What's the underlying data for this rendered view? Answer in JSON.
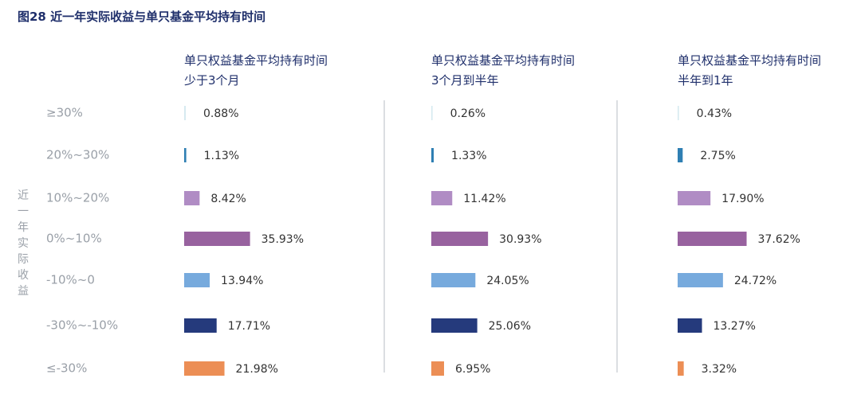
{
  "figure_title": "图28  近一年实际收益与单只基金平均持有时间",
  "chart_data": {
    "type": "bar",
    "orientation": "horizontal",
    "ylabel": "近一年实际收益",
    "categories": [
      "≥30%",
      "20%~30%",
      "10%~20%",
      "0%~10%",
      "-10%~0",
      "-30%~-10%",
      "≤-30%"
    ],
    "category_colors": [
      "#d6eaf0",
      "#2f7fb3",
      "#b08cc4",
      "#98629f",
      "#77aadd",
      "#253a7c",
      "#ec8e55"
    ],
    "panels": [
      {
        "title_lines": [
          "单只权益基金平均持有时间",
          "少于3个月"
        ],
        "values": [
          0.88,
          1.13,
          8.42,
          35.93,
          13.94,
          17.71,
          21.98
        ],
        "labels": [
          "0.88%",
          "1.13%",
          "8.42%",
          "35.93%",
          "13.94%",
          "17.71%",
          "21.98%"
        ]
      },
      {
        "title_lines": [
          "单只权益基金平均持有时间",
          "3个月到半年"
        ],
        "values": [
          0.26,
          1.33,
          11.42,
          30.93,
          24.05,
          25.06,
          6.95
        ],
        "labels": [
          "0.26%",
          "1.33%",
          "11.42%",
          "30.93%",
          "24.05%",
          "25.06%",
          "6.95%"
        ]
      },
      {
        "title_lines": [
          "单只权益基金平均持有时间",
          "半年到1年"
        ],
        "values": [
          0.43,
          2.75,
          17.9,
          37.62,
          24.72,
          13.27,
          3.32
        ],
        "labels": [
          "0.43%",
          "2.75%",
          "17.90%",
          "37.62%",
          "24.72%",
          "13.27%",
          "3.32%"
        ]
      }
    ],
    "grid": false,
    "legend": "none"
  }
}
